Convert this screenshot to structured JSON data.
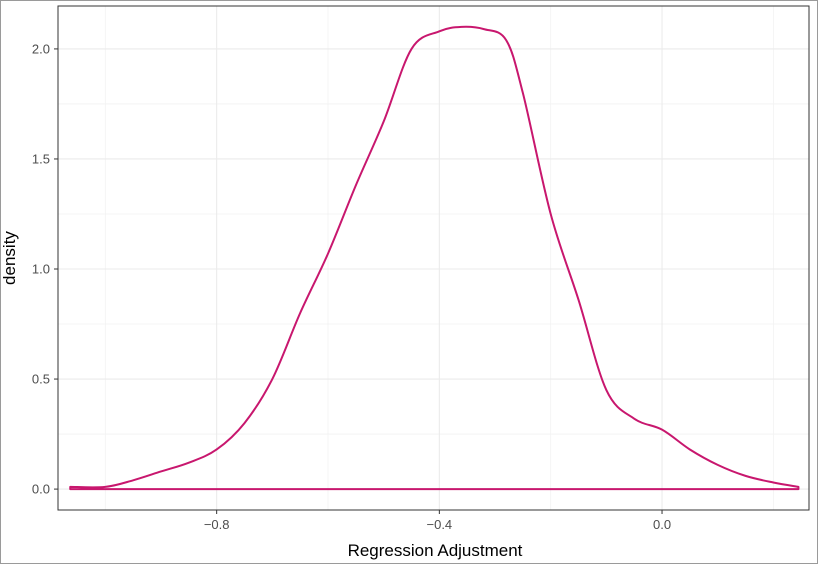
{
  "chart_data": {
    "type": "line",
    "title": "",
    "xlabel": "Regression Adjustment",
    "ylabel": "density",
    "xlim": [
      -1.085,
      0.264
    ],
    "ylim": [
      -0.095,
      2.195
    ],
    "grid": true,
    "legend": "none",
    "x_ticks": [
      {
        "value": -0.8,
        "label": "−0.8"
      },
      {
        "value": -0.4,
        "label": "−0.4"
      },
      {
        "value": 0.0,
        "label": "0.0"
      }
    ],
    "y_ticks": [
      {
        "value": 0.0,
        "label": "0.0"
      },
      {
        "value": 0.5,
        "label": "0.5"
      },
      {
        "value": 1.0,
        "label": "1.0"
      },
      {
        "value": 1.5,
        "label": "1.5"
      },
      {
        "value": 2.0,
        "label": "2.0"
      }
    ],
    "series": [
      {
        "color": "#c8176e",
        "x": [
          -1.063,
          -1.0,
          -0.95,
          -0.9,
          -0.85,
          -0.8,
          -0.75,
          -0.7,
          -0.65,
          -0.6,
          -0.55,
          -0.5,
          -0.45,
          -0.4,
          -0.36,
          -0.32,
          -0.28,
          -0.25,
          -0.2,
          -0.15,
          -0.1,
          -0.05,
          0.0,
          0.05,
          0.1,
          0.15,
          0.2,
          0.245
        ],
        "y": [
          0.01,
          0.01,
          0.04,
          0.08,
          0.12,
          0.18,
          0.3,
          0.5,
          0.8,
          1.07,
          1.38,
          1.67,
          2.0,
          2.08,
          2.1,
          2.09,
          2.04,
          1.8,
          1.25,
          0.86,
          0.45,
          0.32,
          0.27,
          0.18,
          0.11,
          0.06,
          0.03,
          0.01
        ]
      }
    ]
  }
}
